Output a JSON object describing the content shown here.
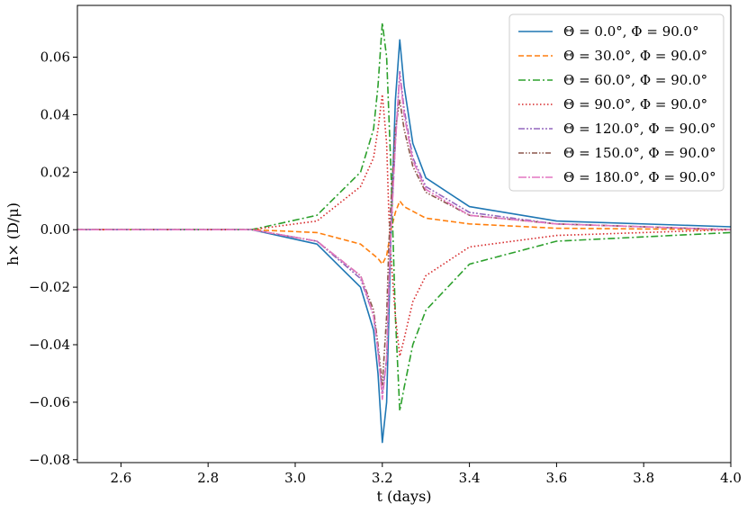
{
  "chart_data": {
    "type": "line",
    "title": "",
    "xlabel": "t (days)",
    "ylabel": "h× (D/μ)",
    "xlim": [
      2.5,
      4.0
    ],
    "ylim": [
      -0.081,
      0.078
    ],
    "xticks": [
      "2.6",
      "2.8",
      "3.0",
      "3.2",
      "3.4",
      "3.6",
      "3.8",
      "4.0"
    ],
    "yticks": [
      "−0.08",
      "−0.06",
      "−0.04",
      "−0.02",
      "0.00",
      "0.02",
      "0.04",
      "0.06"
    ],
    "grid": false,
    "legend_position": "top-right",
    "series": [
      {
        "name": "Θ = 0.0°,  Φ = 90.0°",
        "color": "#1f77b4",
        "dash": "solid",
        "x": [
          2.5,
          2.9,
          3.05,
          3.15,
          3.18,
          3.19,
          3.2,
          3.21,
          3.215,
          3.22,
          3.23,
          3.24,
          3.25,
          3.27,
          3.3,
          3.4,
          3.6,
          4.0
        ],
        "y": [
          0.0,
          0.0,
          -0.005,
          -0.02,
          -0.035,
          -0.05,
          -0.074,
          -0.06,
          -0.03,
          0.0,
          0.045,
          0.066,
          0.05,
          0.03,
          0.018,
          0.008,
          0.003,
          0.001
        ]
      },
      {
        "name": "Θ = 30.0°,  Φ = 90.0°",
        "color": "#ff7f0e",
        "dash": "dashed",
        "x": [
          2.5,
          2.9,
          3.05,
          3.15,
          3.19,
          3.2,
          3.21,
          3.22,
          3.23,
          3.24,
          3.25,
          3.3,
          3.4,
          3.6,
          4.0
        ],
        "y": [
          0.0,
          0.0,
          -0.001,
          -0.005,
          -0.01,
          -0.012,
          -0.009,
          0.0,
          0.006,
          0.01,
          0.008,
          0.004,
          0.002,
          0.0005,
          0.0
        ]
      },
      {
        "name": "Θ = 60.0°,  Φ = 90.0°",
        "color": "#2ca02c",
        "dash": "dashdot",
        "x": [
          2.5,
          2.9,
          3.05,
          3.15,
          3.18,
          3.19,
          3.2,
          3.21,
          3.22,
          3.23,
          3.24,
          3.25,
          3.27,
          3.3,
          3.4,
          3.6,
          4.0
        ],
        "y": [
          0.0,
          0.0,
          0.005,
          0.02,
          0.035,
          0.05,
          0.072,
          0.06,
          0.02,
          -0.03,
          -0.063,
          -0.055,
          -0.04,
          -0.028,
          -0.012,
          -0.004,
          -0.001
        ]
      },
      {
        "name": "Θ = 90.0°,  Φ = 90.0°",
        "color": "#d62728",
        "dash": "dotted",
        "x": [
          2.5,
          2.9,
          3.05,
          3.15,
          3.18,
          3.19,
          3.2,
          3.21,
          3.215,
          3.22,
          3.23,
          3.24,
          3.25,
          3.27,
          3.3,
          3.4,
          3.6,
          4.0
        ],
        "y": [
          0.0,
          0.0,
          0.003,
          0.015,
          0.025,
          0.035,
          0.047,
          0.03,
          0.005,
          -0.01,
          -0.03,
          -0.044,
          -0.038,
          -0.025,
          -0.016,
          -0.006,
          -0.002,
          0.0
        ]
      },
      {
        "name": "Θ = 120.0°,  Φ = 90.0°",
        "color": "#9467bd",
        "dash": "dashdotdot",
        "x": [
          2.5,
          2.9,
          3.05,
          3.15,
          3.18,
          3.19,
          3.2,
          3.21,
          3.215,
          3.22,
          3.23,
          3.24,
          3.25,
          3.27,
          3.3,
          3.4,
          3.6,
          4.0
        ],
        "y": [
          0.0,
          0.0,
          -0.004,
          -0.017,
          -0.03,
          -0.042,
          -0.057,
          -0.045,
          -0.02,
          0.0,
          0.03,
          0.055,
          0.042,
          0.025,
          0.015,
          0.006,
          0.002,
          0.0
        ]
      },
      {
        "name": "Θ = 150.0°,  Φ = 90.0°",
        "color": "#8c564b",
        "dash": "dashdotdot2",
        "x": [
          2.5,
          2.9,
          3.05,
          3.15,
          3.18,
          3.19,
          3.2,
          3.21,
          3.215,
          3.22,
          3.23,
          3.24,
          3.25,
          3.27,
          3.3,
          3.4,
          3.6,
          4.0
        ],
        "y": [
          0.0,
          0.0,
          -0.004,
          -0.016,
          -0.028,
          -0.04,
          -0.054,
          -0.03,
          -0.005,
          0.01,
          0.035,
          0.045,
          0.035,
          0.022,
          0.013,
          0.005,
          0.002,
          0.0
        ]
      },
      {
        "name": "Θ = 180.0°,  Φ = 90.0°",
        "color": "#e377c2",
        "dash": "dashdot2",
        "x": [
          2.5,
          2.9,
          3.05,
          3.15,
          3.18,
          3.19,
          3.2,
          3.21,
          3.215,
          3.22,
          3.23,
          3.24,
          3.25,
          3.27,
          3.3,
          3.4,
          3.6,
          4.0
        ],
        "y": [
          0.0,
          0.0,
          -0.004,
          -0.016,
          -0.03,
          -0.042,
          -0.059,
          -0.045,
          -0.02,
          0.0,
          0.03,
          0.054,
          0.04,
          0.024,
          0.014,
          0.005,
          0.002,
          0.0
        ]
      }
    ]
  }
}
